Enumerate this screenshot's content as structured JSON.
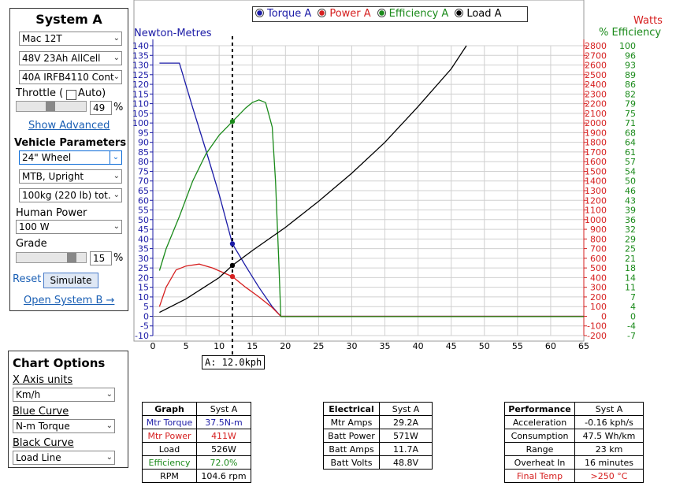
{
  "left": {
    "title": "System A",
    "motor": "Mac 12T",
    "battery": "48V 23Ah AllCell",
    "controller": "40A IRFB4110 Cont",
    "throttle_label": "Throttle (",
    "auto_label": "Auto)",
    "throttle_value": "49",
    "percent": "%",
    "throttle_level": 0.49,
    "show_advanced": "Show Advanced",
    "vehicle_params": "Vehicle Parameters",
    "wheel": "24\"  Wheel",
    "frame": "MTB, Upright",
    "mass": "100kg (220 lb) tot.",
    "human_power_label": "Human Power",
    "human_power": "100 W",
    "grade_label": "Grade",
    "grade_value": "15",
    "grade_level": 0.6,
    "reset": "Reset",
    "simulate": "Simulate",
    "open_b": "Open System B →"
  },
  "chart_options": {
    "title": "Chart Options",
    "x_units_label": "X Axis units",
    "x_units": "Km/h",
    "blue_label": "Blue Curve",
    "blue": "N-m Torque",
    "black_label": "Black Curve",
    "black": "Load Line"
  },
  "legend": {
    "items": [
      {
        "label": "Torque A",
        "color": "#1a1aa6"
      },
      {
        "label": "Power A",
        "color": "#d62020"
      },
      {
        "label": "Efficiency A",
        "color": "#1a8a1a"
      },
      {
        "label": "Load A",
        "color": "#000000"
      }
    ]
  },
  "axis_titles": {
    "left": "Newton-Metres",
    "right_watts": "Watts",
    "right_eff": "% Efficiency"
  },
  "marker_label": "A: 12.0kph",
  "chart_data": {
    "type": "line",
    "xlim": [
      0,
      65
    ],
    "x_ticks": [
      0,
      5,
      10,
      15,
      20,
      25,
      30,
      35,
      40,
      45,
      50,
      55,
      60,
      65
    ],
    "ylim_torque": [
      -10,
      140
    ],
    "torque_ticks": [
      -10,
      -5,
      0,
      5,
      10,
      15,
      20,
      25,
      30,
      35,
      40,
      45,
      50,
      55,
      60,
      65,
      70,
      75,
      80,
      85,
      90,
      95,
      100,
      105,
      110,
      115,
      120,
      125,
      130,
      135,
      140
    ],
    "ylim_watts": [
      -200,
      2800
    ],
    "watt_ticks": [
      -200,
      -100,
      0,
      100,
      200,
      300,
      400,
      500,
      600,
      700,
      800,
      900,
      1000,
      1100,
      1200,
      1300,
      1400,
      1500,
      1600,
      1700,
      1800,
      1900,
      2000,
      2100,
      2200,
      2300,
      2400,
      2500,
      2600,
      2700,
      2800
    ],
    "ylim_eff": [
      -7,
      100
    ],
    "eff_ticks": [
      -7,
      -4,
      0,
      4,
      7,
      11,
      14,
      18,
      21,
      25,
      29,
      32,
      36,
      39,
      43,
      46,
      50,
      54,
      57,
      61,
      64,
      68,
      71,
      75,
      79,
      82,
      86,
      89,
      93,
      96,
      100
    ],
    "grid": true,
    "marker_x": 12,
    "series": [
      {
        "name": "Torque A",
        "axis": "torque",
        "color": "#1a1aa6",
        "x": [
          1,
          4,
          6,
          8,
          10,
          12,
          14,
          16,
          18,
          19.3,
          20,
          65
        ],
        "y": [
          131,
          131,
          108,
          86,
          63,
          37.5,
          26,
          15,
          5,
          0,
          0,
          0
        ]
      },
      {
        "name": "Power A",
        "axis": "watts",
        "color": "#d62020",
        "x": [
          1,
          2,
          3.5,
          5,
          7,
          9,
          11,
          12,
          14,
          16,
          18,
          19.3,
          20,
          65
        ],
        "y": [
          100,
          300,
          480,
          520,
          540,
          500,
          440,
          411,
          300,
          200,
          90,
          0,
          0,
          0
        ]
      },
      {
        "name": "Efficiency A",
        "axis": "eff",
        "color": "#1a8a1a",
        "x": [
          1,
          2,
          4,
          6,
          8,
          10,
          12,
          14,
          15,
          16,
          17,
          18,
          18.5,
          19,
          19.3,
          20,
          65
        ],
        "y": [
          17,
          25,
          37,
          50,
          60,
          67,
          72,
          77,
          79,
          80,
          79,
          70,
          50,
          20,
          0,
          0,
          0
        ]
      },
      {
        "name": "Load A",
        "axis": "watts",
        "color": "#000000",
        "x": [
          1,
          5,
          10,
          12,
          15,
          20,
          25,
          30,
          35,
          40,
          45,
          47.3
        ],
        "y": [
          40,
          180,
          400,
          526,
          680,
          920,
          1190,
          1480,
          1800,
          2170,
          2560,
          2800
        ]
      }
    ],
    "points": [
      {
        "axis": "torque",
        "x": 12,
        "y": 37.5,
        "color": "#1a1aa6"
      },
      {
        "axis": "watts",
        "x": 12,
        "y": 411,
        "color": "#d62020"
      },
      {
        "axis": "eff",
        "x": 12,
        "y": 72,
        "color": "#1a8a1a"
      },
      {
        "axis": "watts",
        "x": 12,
        "y": 526,
        "color": "#000000"
      }
    ]
  },
  "tables": {
    "graph": {
      "h1": "Graph",
      "h2": "Syst A",
      "rows": [
        {
          "label": "Mtr Torque",
          "value": "37.5N-m",
          "color": "#1a1aa6"
        },
        {
          "label": "Mtr Power",
          "value": "411W",
          "color": "#d62020"
        },
        {
          "label": "Load",
          "value": "526W",
          "color": "#000000"
        },
        {
          "label": "Efficiency",
          "value": "72.0%",
          "color": "#1a8a1a"
        },
        {
          "label": "RPM",
          "value": "104.6 rpm",
          "color": "#000000"
        }
      ]
    },
    "electrical": {
      "h1": "Electrical",
      "h2": "Syst A",
      "rows": [
        {
          "label": "Mtr Amps",
          "value": "29.2A"
        },
        {
          "label": "Batt Power",
          "value": "571W"
        },
        {
          "label": "Batt Amps",
          "value": "11.7A"
        },
        {
          "label": "Batt Volts",
          "value": "48.8V"
        }
      ]
    },
    "performance": {
      "h1": "Performance",
      "h2": "Syst A",
      "rows": [
        {
          "label": "Acceleration",
          "value": "-0.16 kph/s"
        },
        {
          "label": "Consumption",
          "value": "47.5 Wh/km"
        },
        {
          "label": "Range",
          "value": "23 km"
        },
        {
          "label": "Overheat In",
          "value": "16 minutes"
        },
        {
          "label": "Final Temp",
          "value": ">250 °C",
          "color": "#d62020"
        }
      ]
    }
  }
}
